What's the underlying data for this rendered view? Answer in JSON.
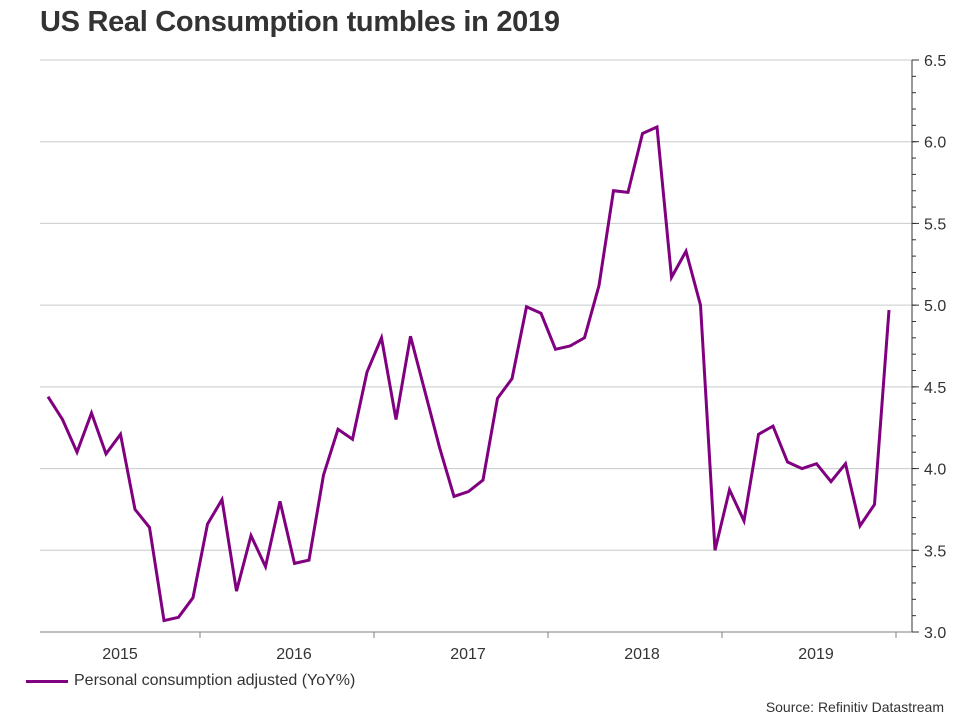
{
  "title": "US Real Consumption tumbles in 2019",
  "source": "Source: Refinitiv Datastream",
  "chart_data": {
    "type": "line",
    "title": "US Real Consumption tumbles in 2019",
    "xlabel": "",
    "ylabel": "",
    "y_axis_side": "right",
    "ylim": [
      3.0,
      6.5
    ],
    "yticks": [
      "3.0",
      "3.5",
      "4.0",
      "4.5",
      "5.0",
      "5.5",
      "6.0",
      "6.5"
    ],
    "ytick_values": [
      3.0,
      3.5,
      4.0,
      4.5,
      5.0,
      5.5,
      6.0,
      6.5
    ],
    "y_minor_step": 0.1,
    "grid": "horizontal",
    "x_tick_labels": [
      "2015",
      "2016",
      "2017",
      "2018",
      "2019"
    ],
    "x_start": "2015-02",
    "x_end": "2019-12",
    "frequency": "monthly",
    "legend_position": "bottom-left",
    "series": [
      {
        "name": "Personal consumption adjusted (YoY%)",
        "color": "#800080",
        "x": [
          "2015-02",
          "2015-03",
          "2015-04",
          "2015-05",
          "2015-06",
          "2015-07",
          "2015-08",
          "2015-09",
          "2015-10",
          "2015-11",
          "2015-12",
          "2016-01",
          "2016-02",
          "2016-03",
          "2016-04",
          "2016-05",
          "2016-06",
          "2016-07",
          "2016-08",
          "2016-09",
          "2016-10",
          "2016-11",
          "2016-12",
          "2017-01",
          "2017-02",
          "2017-03",
          "2017-04",
          "2017-05",
          "2017-06",
          "2017-07",
          "2017-08",
          "2017-09",
          "2017-10",
          "2017-11",
          "2017-12",
          "2018-01",
          "2018-02",
          "2018-03",
          "2018-04",
          "2018-05",
          "2018-06",
          "2018-07",
          "2018-08",
          "2018-09",
          "2018-10",
          "2018-11",
          "2018-12",
          "2019-01",
          "2019-02",
          "2019-03",
          "2019-04",
          "2019-05",
          "2019-06",
          "2019-07",
          "2019-08",
          "2019-09",
          "2019-10",
          "2019-11",
          "2019-12"
        ],
        "values": [
          4.44,
          4.3,
          4.1,
          4.34,
          4.09,
          4.21,
          3.75,
          3.64,
          3.07,
          3.09,
          3.21,
          3.66,
          3.81,
          3.25,
          3.59,
          3.4,
          3.8,
          3.42,
          3.44,
          3.96,
          4.24,
          4.18,
          4.59,
          4.8,
          4.3,
          4.81,
          4.47,
          4.13,
          3.83,
          3.86,
          3.93,
          4.43,
          4.55,
          4.99,
          4.95,
          4.73,
          4.75,
          4.8,
          5.12,
          5.7,
          5.69,
          6.05,
          6.09,
          5.17,
          5.33,
          5.0,
          3.5,
          3.87,
          3.68,
          4.21,
          4.26,
          4.04,
          4.0,
          4.03,
          3.92,
          4.03,
          3.65,
          3.78,
          4.97
        ]
      }
    ]
  }
}
